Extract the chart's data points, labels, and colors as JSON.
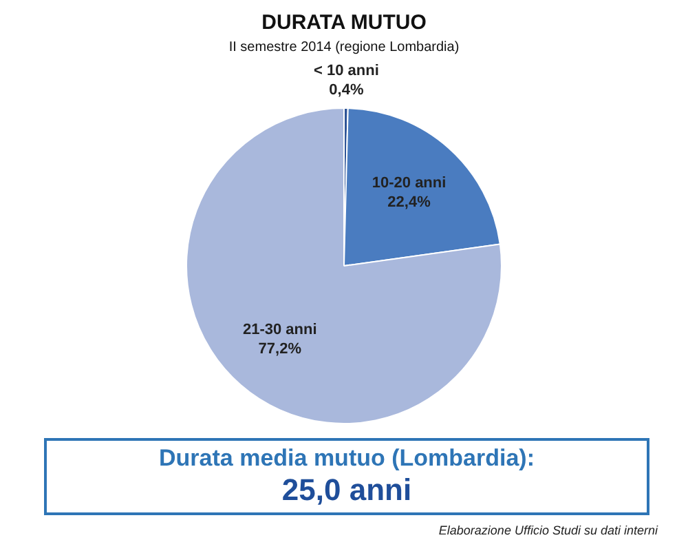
{
  "chart_data": {
    "type": "pie",
    "title": "DURATA MUTUO",
    "subtitle": "II semestre 2014 (regione Lombardia)",
    "categories": [
      "< 10 anni",
      "10-20 anni",
      "21-30 anni"
    ],
    "values": [
      0.4,
      22.4,
      77.2
    ],
    "colors": [
      "#2f5597",
      "#4a7cc0",
      "#a9b8dc"
    ],
    "value_labels": [
      "0,4%",
      "22,4%",
      "77,2%"
    ],
    "legend": false,
    "annotations": [
      "Durata media mutuo (Lombardia):",
      "25,0 anni",
      "Elaborazione Ufficio Studi su dati interni"
    ]
  }
}
